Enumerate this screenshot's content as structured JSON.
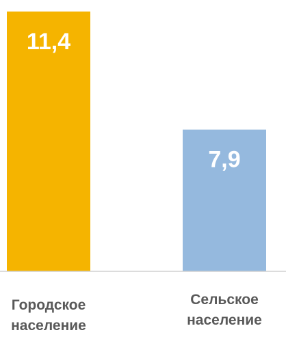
{
  "chart_data": {
    "type": "bar",
    "categories": [
      "Городское население",
      "Сельское население"
    ],
    "series": [
      {
        "values": [
          11.4,
          7.9
        ],
        "value_labels": [
          "11,4",
          "7,9"
        ],
        "colors": [
          "#f5b400",
          "#95b9de"
        ]
      }
    ],
    "ylim": [
      3.7,
      11.7
    ]
  }
}
